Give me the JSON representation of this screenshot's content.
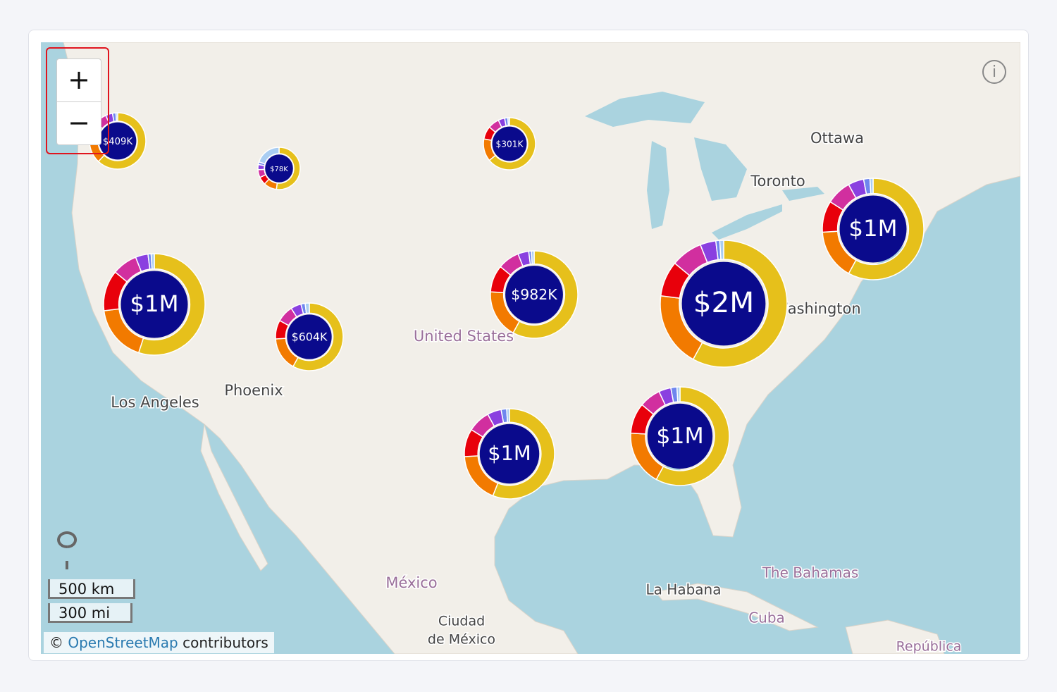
{
  "zoom_controls": {
    "zoom_in": "+",
    "zoom_out": "−"
  },
  "info_icon": "i",
  "map_labels": [
    "Ottawa",
    "Toronto",
    "Washington",
    "United States",
    "Los Angeles",
    "Phoenix",
    "México",
    "Ciudad",
    "de México",
    "La Habana",
    "The Bahamas",
    "Cuba",
    "República"
  ],
  "segment_colors": [
    "#e6c01b",
    "#f27a00",
    "#e8000b",
    "#d12f9f",
    "#8a40e0",
    "#6f86ee",
    "#a9cdf2"
  ],
  "clusters": [
    {
      "label": "$409K",
      "shares": [
        62,
        16,
        8,
        7,
        4,
        2,
        1
      ]
    },
    {
      "label": "$78K",
      "shares": [
        52,
        10,
        6,
        6,
        4,
        2,
        20
      ]
    },
    {
      "label": "$301K",
      "shares": [
        64,
        14,
        8,
        7,
        4,
        2,
        1
      ]
    },
    {
      "label": "$1M",
      "shares": [
        55,
        18,
        13,
        8,
        4,
        1,
        1
      ]
    },
    {
      "label": "$604K",
      "shares": [
        58,
        16,
        9,
        8,
        5,
        2,
        2
      ]
    },
    {
      "label": "$982K",
      "shares": [
        58,
        18,
        10,
        8,
        4,
        1,
        1
      ]
    },
    {
      "label": "$2M",
      "shares": [
        58,
        19,
        9,
        8,
        4,
        1,
        1
      ]
    },
    {
      "label": "$1M",
      "shares": [
        58,
        16,
        10,
        8,
        5,
        2,
        1
      ]
    },
    {
      "label": "$1M",
      "shares": [
        56,
        18,
        10,
        8,
        5,
        2,
        1
      ]
    },
    {
      "label": "$1M",
      "shares": [
        58,
        18,
        10,
        7,
        4,
        2,
        1
      ]
    }
  ],
  "scale": {
    "metric": "500 km",
    "imperial": "300 mi"
  },
  "attribution": {
    "symbol": "©",
    "link": "OpenStreetMap",
    "text": "contributors"
  }
}
